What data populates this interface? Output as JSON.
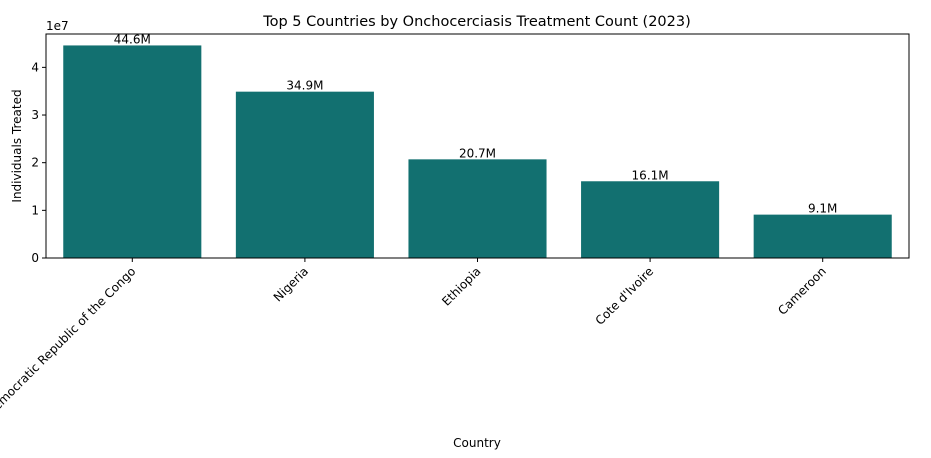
{
  "chart_data": {
    "type": "bar",
    "title": "Top 5 Countries by Onchocerciasis Treatment Count (2023)",
    "xlabel": "Country",
    "ylabel": "Individuals Treated",
    "y_offset_label": "1e7",
    "categories": [
      "Democratic Republic of the Congo",
      "Nigeria",
      "Ethiopia",
      "Cote d'Ivoire",
      "Cameroon"
    ],
    "values": [
      44600000,
      34900000,
      20700000,
      16100000,
      9100000
    ],
    "data_labels": [
      "44.6M",
      "34.9M",
      "20.7M",
      "16.1M",
      "9.1M"
    ],
    "ylim": [
      0,
      47000000
    ],
    "yticks": [
      0,
      10000000,
      20000000,
      30000000,
      40000000
    ],
    "ytick_labels": [
      "0",
      "1",
      "2",
      "3",
      "4"
    ],
    "grid": false,
    "bar_color": "#127070"
  }
}
